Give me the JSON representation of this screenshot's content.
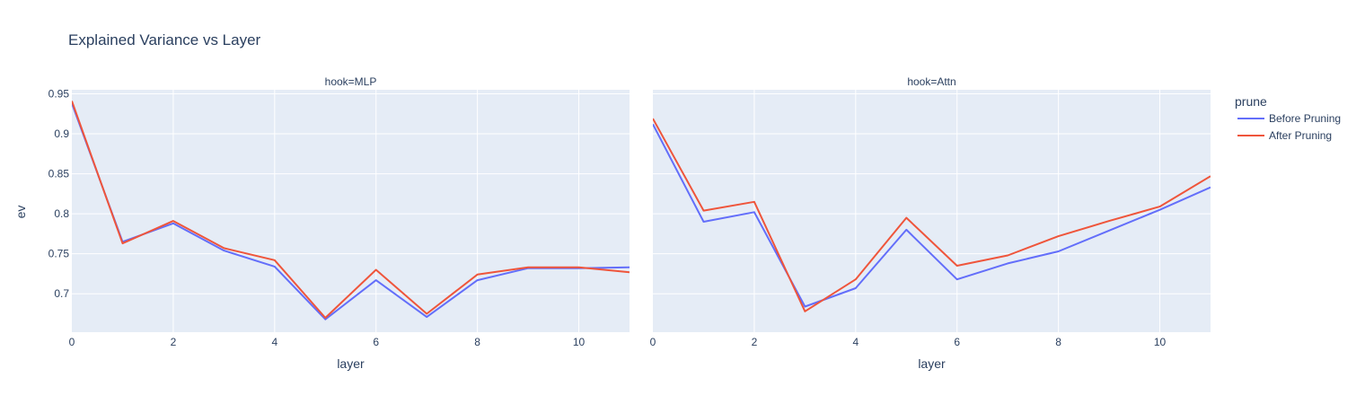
{
  "chart_data": {
    "type": "line",
    "title": "Explained Variance vs Layer",
    "xlabel": "layer",
    "ylabel": "ev",
    "xlim": [
      0,
      11
    ],
    "ylim": [
      0.652,
      0.955
    ],
    "x_ticks": [
      0,
      2,
      4,
      6,
      8,
      10
    ],
    "y_ticks": [
      0.7,
      0.75,
      0.8,
      0.85,
      0.9,
      0.95
    ],
    "legend": {
      "title": "prune",
      "placement": "right"
    },
    "x": [
      0,
      1,
      2,
      3,
      4,
      5,
      6,
      7,
      8,
      9,
      10,
      11
    ],
    "facets": [
      {
        "title": "hook=MLP",
        "series": [
          {
            "name": "Before Pruning",
            "color": "#636efa",
            "values": [
              0.938,
              0.765,
              0.788,
              0.754,
              0.734,
              0.668,
              0.717,
              0.671,
              0.717,
              0.732,
              0.732,
              0.733
            ]
          },
          {
            "name": "After Pruning",
            "color": "#ef553b",
            "values": [
              0.941,
              0.763,
              0.791,
              0.757,
              0.742,
              0.67,
              0.73,
              0.675,
              0.724,
              0.733,
              0.733,
              0.727
            ]
          }
        ]
      },
      {
        "title": "hook=Attn",
        "series": [
          {
            "name": "Before Pruning",
            "color": "#636efa",
            "values": [
              0.912,
              0.79,
              0.802,
              0.684,
              0.707,
              0.78,
              0.718,
              0.738,
              0.753,
              0.779,
              0.805,
              0.833
            ]
          },
          {
            "name": "After Pruning",
            "color": "#ef553b",
            "values": [
              0.919,
              0.804,
              0.815,
              0.678,
              0.718,
              0.795,
              0.735,
              0.748,
              0.772,
              0.791,
              0.809,
              0.847
            ]
          }
        ]
      }
    ]
  }
}
